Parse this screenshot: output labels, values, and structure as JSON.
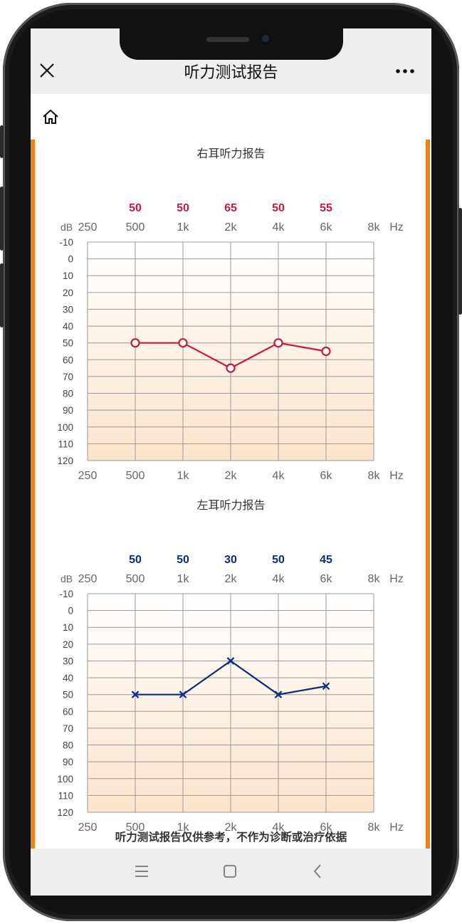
{
  "header": {
    "title": "听力测试报告"
  },
  "icons": {
    "close": "close-icon",
    "more": "more-icon",
    "home": "home-icon",
    "nav": [
      "menu-icon",
      "square-icon",
      "back-chevron-icon"
    ]
  },
  "footer": {
    "note": "听力测试报告仅供参考，不作为诊断或治疗依据"
  },
  "colors": {
    "accent": "#ef7f1a",
    "right_ear": "#c8193c",
    "left_ear": "#0a2d82"
  },
  "chart_data": [
    {
      "type": "line",
      "title": "右耳听力报告",
      "marker": "circle",
      "color": "#c8193c",
      "yunit": "dB",
      "xunit": "Hz",
      "xticks": [
        "250",
        "500",
        "1k",
        "2k",
        "4k",
        "6k",
        "8k"
      ],
      "ylim": [
        -10,
        120
      ],
      "yticks": [
        -10,
        0,
        10,
        20,
        30,
        40,
        50,
        60,
        70,
        80,
        90,
        100,
        110,
        120
      ],
      "y_inverted": true,
      "grid": true,
      "points": [
        {
          "x": "500",
          "y": 50
        },
        {
          "x": "1k",
          "y": 50
        },
        {
          "x": "2k",
          "y": 65
        },
        {
          "x": "4k",
          "y": 50
        },
        {
          "x": "6k",
          "y": 55
        }
      ]
    },
    {
      "type": "line",
      "title": "左耳听力报告",
      "marker": "x",
      "color": "#0a2d82",
      "yunit": "dB",
      "xunit": "Hz",
      "xticks": [
        "250",
        "500",
        "1k",
        "2k",
        "4k",
        "6k",
        "8k"
      ],
      "ylim": [
        -10,
        120
      ],
      "yticks": [
        -10,
        0,
        10,
        20,
        30,
        40,
        50,
        60,
        70,
        80,
        90,
        100,
        110,
        120
      ],
      "y_inverted": true,
      "grid": true,
      "points": [
        {
          "x": "500",
          "y": 50
        },
        {
          "x": "1k",
          "y": 50
        },
        {
          "x": "2k",
          "y": 30
        },
        {
          "x": "4k",
          "y": 50
        },
        {
          "x": "6k",
          "y": 45
        }
      ]
    }
  ]
}
